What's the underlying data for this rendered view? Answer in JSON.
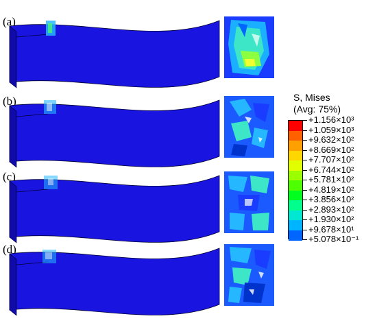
{
  "panels": [
    {
      "label": "(a)"
    },
    {
      "label": "(b)"
    },
    {
      "label": "(c)"
    },
    {
      "label": "(d)"
    }
  ],
  "legend": {
    "title_line1": "S, Mises",
    "title_line2": "(Avg: 75%)",
    "values": [
      "+1.156×10³",
      "+1.059×10³",
      "+9.632×10²",
      "+8.669×10²",
      "+7.707×10²",
      "+6.744×10²",
      "+5.781×10²",
      "+4.819×10²",
      "+3.856×10²",
      "+2.893×10²",
      "+1.930×10²",
      "+9.678×10¹",
      "+5.078×10⁻¹"
    ],
    "colors": [
      "#ff0000",
      "#ff6000",
      "#ff9f00",
      "#ffd700",
      "#e2ff00",
      "#9cff00",
      "#4dff00",
      "#00ff1e",
      "#00ff8d",
      "#00e8d2",
      "#00b5ff",
      "#0066ff",
      "#0018ff"
    ]
  },
  "colors": {
    "body": "#1a14e0",
    "body_dark": "#0f0aa8",
    "edge": "#000055"
  }
}
